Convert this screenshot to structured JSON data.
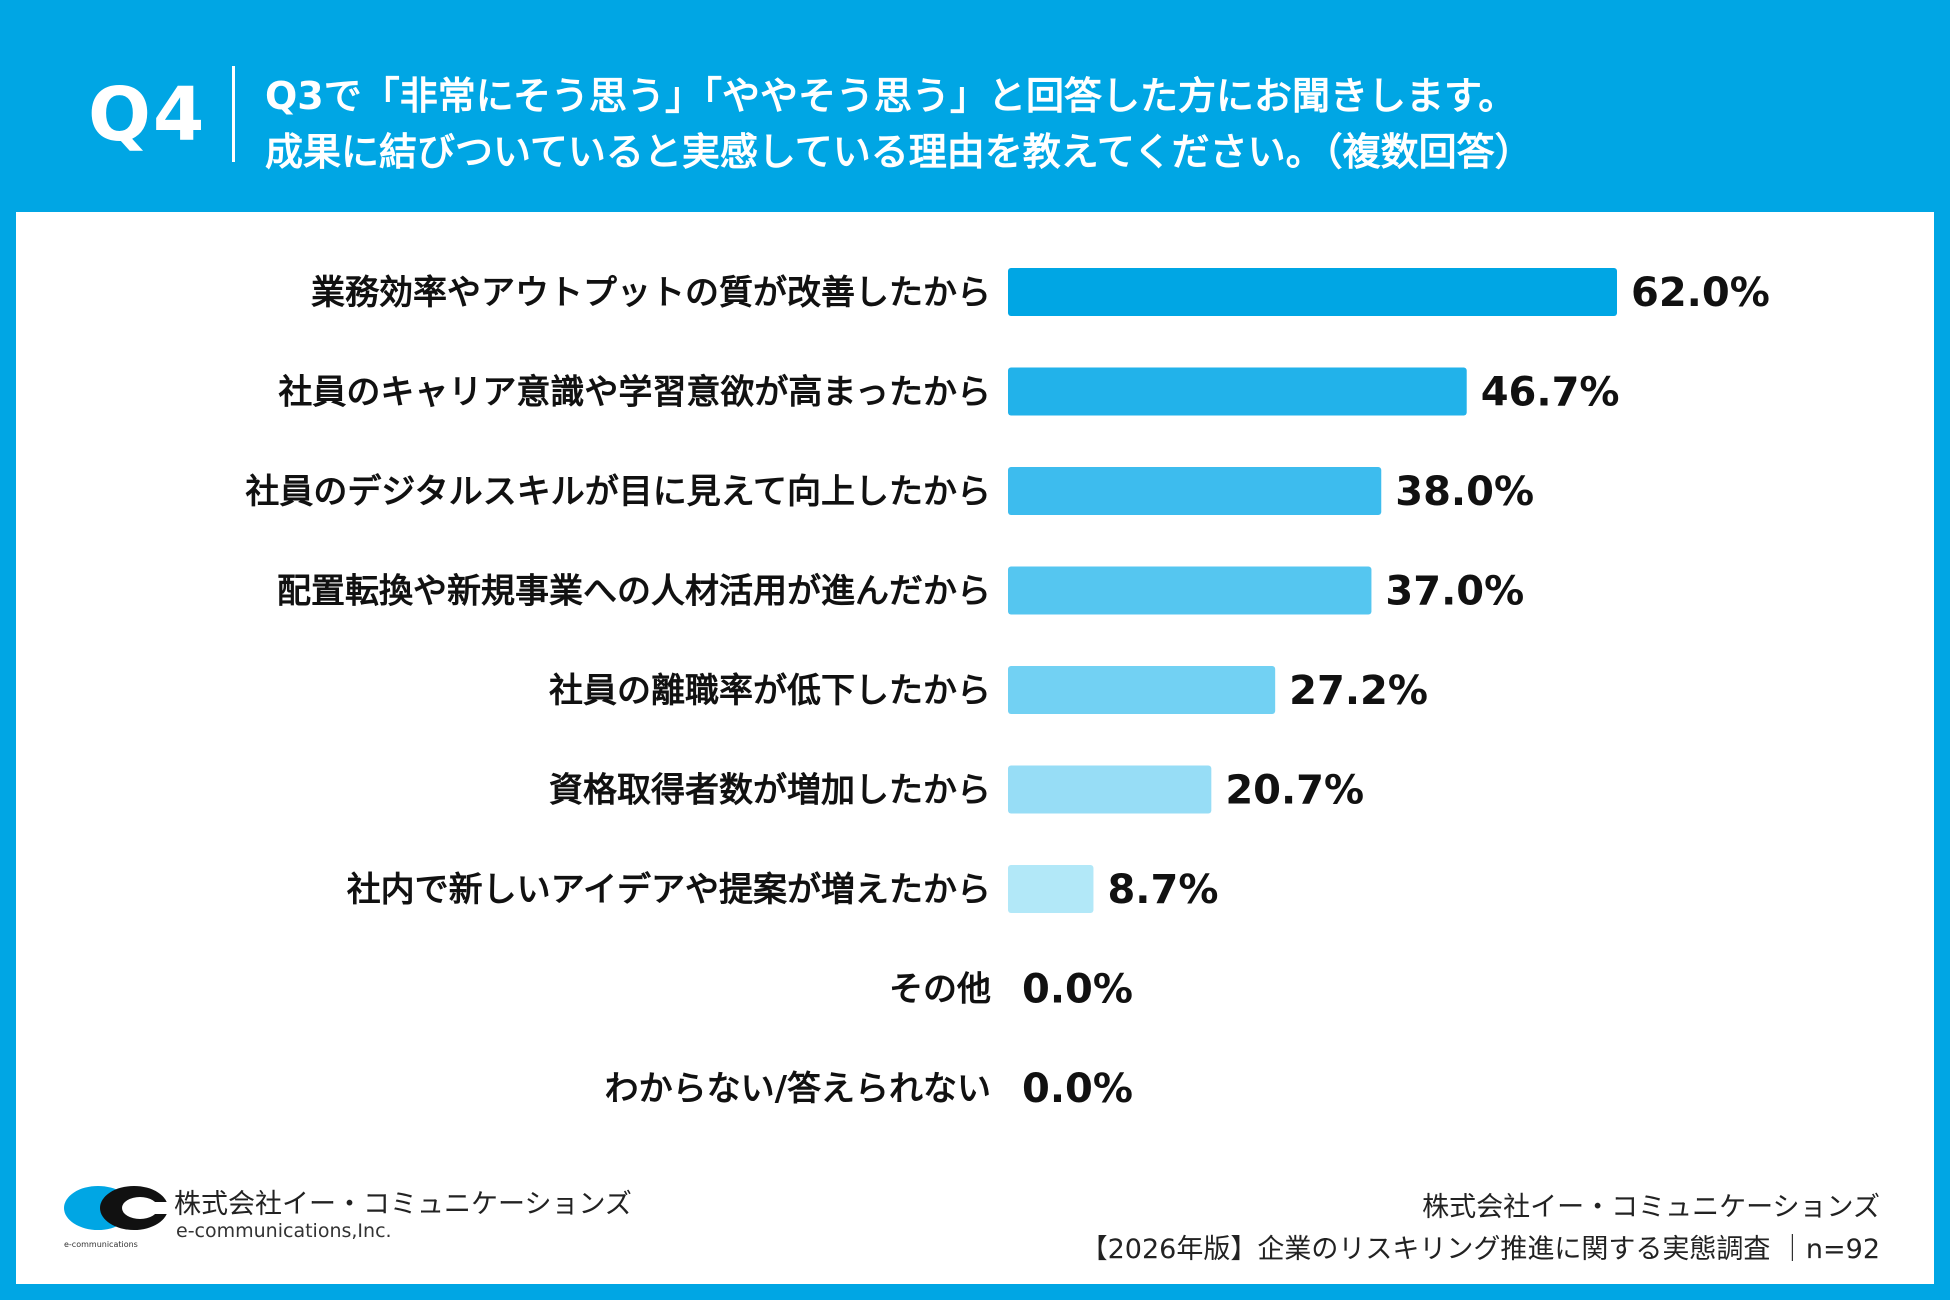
{
  "header": {
    "question_number": "Q4",
    "question_line1": "Q3で「非常にそう思う」「ややそう思う」と回答した方にお聞きします。",
    "question_line2": "成果に結びついていると実感している理由を教えてください。（複数回答）",
    "background_color": "#00a6e4"
  },
  "chart_data": {
    "type": "bar",
    "orientation": "horizontal",
    "categories": [
      "業務効率やアウトプットの質が改善したから",
      "社員のキャリア意識や学習意欲が高まったから",
      "社員のデジタルスキルが目に見えて向上したから",
      "配置転換や新規事業への人材活用が進んだから",
      "社員の離職率が低下したから",
      "資格取得者数が増加したから",
      "社内で新しいアイデアや提案が増えたから",
      "その他",
      "わからない/答えられない"
    ],
    "values": [
      62.0,
      46.7,
      38.0,
      37.0,
      27.2,
      20.7,
      8.7,
      0.0,
      0.0
    ],
    "value_labels": [
      "62.0%",
      "46.7%",
      "38.0%",
      "37.0%",
      "27.2%",
      "20.7%",
      "8.7%",
      "0.0%",
      "0.0%"
    ],
    "colors": [
      "#00a6e4",
      "#22b2ea",
      "#3dbcee",
      "#55c6f0",
      "#72d1f3",
      "#97ddf6",
      "#b2e8f8",
      "#cdeffa",
      "#d9f3fb"
    ],
    "xlim": [
      0,
      100
    ],
    "grid": false
  },
  "logo": {
    "name_ja": "株式会社イー・コミュニケーションズ",
    "name_en": "e-communications,Inc.",
    "mark_text": "e-communications"
  },
  "footer": {
    "line1": "株式会社イー・コミュニケーションズ",
    "line2": "【2026年版】企業のリスキリング推進に関する実態調査 ｜n=92"
  }
}
